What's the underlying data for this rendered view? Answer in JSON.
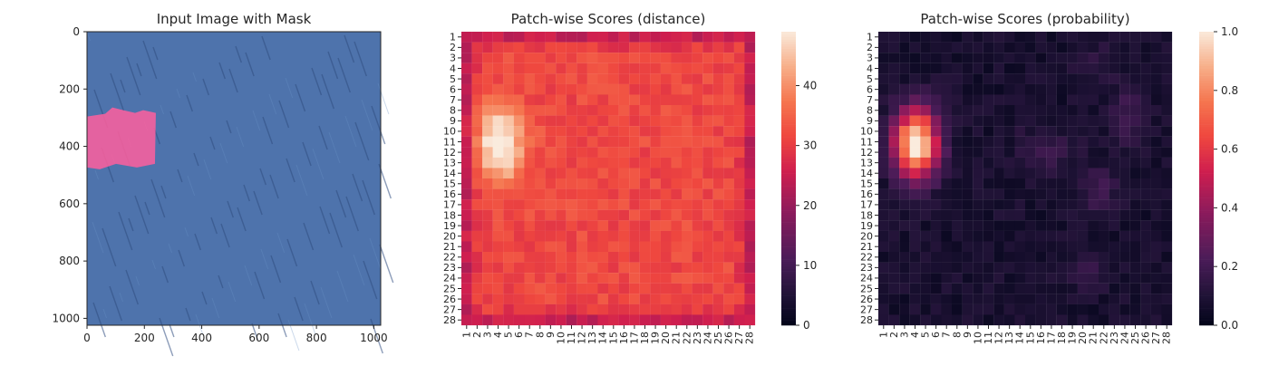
{
  "chart_data": [
    {
      "type": "image",
      "title": "Input Image with Mask",
      "xlabel": "",
      "ylabel": "",
      "xlim": [
        0,
        1024
      ],
      "ylim": [
        1024,
        0
      ],
      "xticks": [
        0,
        200,
        400,
        600,
        800,
        1000
      ],
      "yticks": [
        0,
        200,
        400,
        600,
        800,
        1000
      ],
      "image_content": "blue textured fabric with diagonal dark streaks",
      "mask_region": {
        "x_range": [
          0,
          240
        ],
        "y_range": [
          280,
          480
        ],
        "color": "#ff5f9e"
      },
      "colors": {
        "base": "#4e73ac",
        "dark_streak": "#2f4d7f",
        "light": "#6b92c7"
      }
    },
    {
      "type": "heatmap",
      "title": "Patch-wise Scores (distance)",
      "xlabel": "",
      "ylabel": "",
      "rows": 28,
      "cols": 28,
      "row_labels": [
        "1",
        "2",
        "3",
        "4",
        "5",
        "6",
        "7",
        "8",
        "9",
        "10",
        "11",
        "12",
        "13",
        "14",
        "15",
        "16",
        "17",
        "18",
        "19",
        "20",
        "21",
        "22",
        "23",
        "24",
        "25",
        "26",
        "27",
        "28"
      ],
      "col_labels": [
        "1",
        "2",
        "3",
        "4",
        "5",
        "6",
        "7",
        "8",
        "9",
        "10",
        "11",
        "12",
        "13",
        "14",
        "15",
        "16",
        "17",
        "18",
        "19",
        "20",
        "21",
        "22",
        "23",
        "24",
        "25",
        "26",
        "27",
        "28"
      ],
      "colorbar": {
        "min": 0,
        "max": 49,
        "ticks": [
          0,
          10,
          20,
          30,
          40
        ]
      },
      "colormap": "rocket",
      "values_summary": "Border cells about 25; interior mostly 28-35; bright blob centered near row 11, col 4 peaking at 49."
    },
    {
      "type": "heatmap",
      "title": "Patch-wise Scores (probability)",
      "xlabel": "",
      "ylabel": "",
      "rows": 28,
      "cols": 28,
      "row_labels": [
        "1",
        "2",
        "3",
        "4",
        "5",
        "6",
        "7",
        "8",
        "9",
        "10",
        "11",
        "12",
        "13",
        "14",
        "15",
        "16",
        "17",
        "18",
        "19",
        "20",
        "21",
        "22",
        "23",
        "24",
        "25",
        "26",
        "27",
        "28"
      ],
      "col_labels": [
        "1",
        "2",
        "3",
        "4",
        "5",
        "6",
        "7",
        "8",
        "9",
        "10",
        "11",
        "12",
        "13",
        "14",
        "15",
        "16",
        "17",
        "18",
        "19",
        "20",
        "21",
        "22",
        "23",
        "24",
        "25",
        "26",
        "27",
        "28"
      ],
      "colorbar": {
        "min": 0,
        "max": 1,
        "ticks": [
          "0.0",
          "0.2",
          "0.4",
          "0.6",
          "0.8",
          "1.0"
        ]
      },
      "colormap": "rocket",
      "values_summary": "Mostly near 0.0 with faint patches; strong anomaly blob centered near row 11, col 4 reaching 1.0."
    }
  ]
}
